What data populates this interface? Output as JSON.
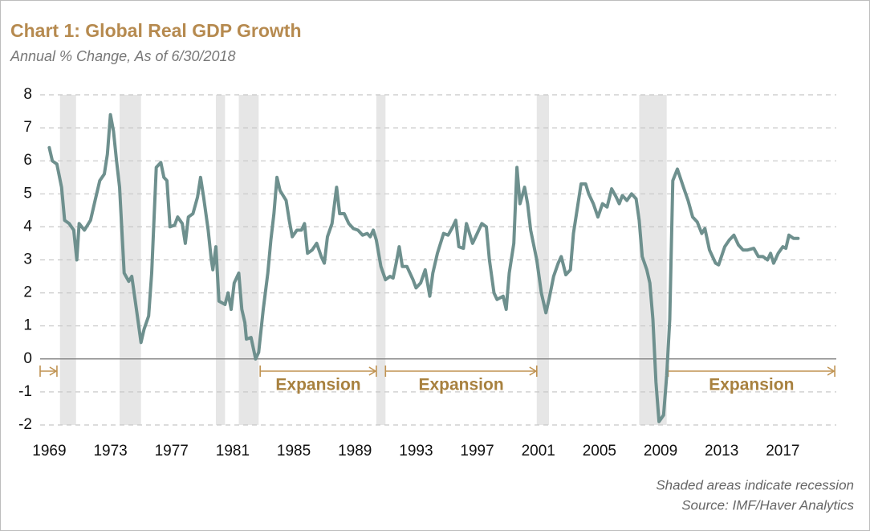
{
  "chart_data": {
    "type": "line",
    "title": "Chart 1: Global Real GDP Growth",
    "subtitle": "Annual % Change, As of 6/30/2018",
    "notes": [
      "Shaded areas indicate recession",
      "Source: IMF/Haver Analytics"
    ],
    "color": "#6e908e",
    "x": [
      1969.0,
      1969.2,
      1969.5,
      1969.8,
      1970.0,
      1970.3,
      1970.6,
      1970.8,
      1970.95,
      1971.3,
      1971.7,
      1972.0,
      1972.3,
      1972.6,
      1972.8,
      1973.0,
      1973.2,
      1973.4,
      1973.6,
      1973.9,
      1974.2,
      1974.4,
      1974.7,
      1975.0,
      1975.2,
      1975.5,
      1975.7,
      1976.0,
      1976.3,
      1976.5,
      1976.7,
      1976.9,
      1977.2,
      1977.4,
      1977.7,
      1977.9,
      1978.1,
      1978.4,
      1978.7,
      1978.9,
      1979.1,
      1979.4,
      1979.6,
      1979.7,
      1979.9,
      1980.1,
      1980.5,
      1980.7,
      1980.9,
      1981.1,
      1981.4,
      1981.6,
      1981.8,
      1981.9,
      1982.2,
      1982.5,
      1982.7,
      1983.0,
      1983.3,
      1983.5,
      1983.7,
      1983.9,
      1984.1,
      1984.5,
      1984.7,
      1984.9,
      1985.2,
      1985.5,
      1985.7,
      1985.9,
      1986.2,
      1986.5,
      1986.8,
      1987.0,
      1987.2,
      1987.5,
      1987.8,
      1988.0,
      1988.3,
      1988.6,
      1988.9,
      1989.2,
      1989.5,
      1989.8,
      1990.0,
      1990.2,
      1990.4,
      1990.7,
      1991.0,
      1991.3,
      1991.5,
      1991.7,
      1991.9,
      1992.1,
      1992.4,
      1992.8,
      1993.0,
      1993.3,
      1993.6,
      1993.9,
      1994.1,
      1994.4,
      1994.8,
      1995.1,
      1995.4,
      1995.6,
      1995.8,
      1996.1,
      1996.3,
      1996.7,
      1997.0,
      1997.3,
      1997.6,
      1997.8,
      1998.1,
      1998.3,
      1998.7,
      1998.9,
      1999.1,
      1999.4,
      1999.6,
      1999.8,
      2000.1,
      2000.3,
      2000.5,
      2000.9,
      2001.2,
      2001.5,
      2001.7,
      2002.0,
      2002.3,
      2002.5,
      2002.8,
      2003.1,
      2003.3,
      2003.6,
      2003.8,
      2004.1,
      2004.3,
      2004.6,
      2004.9,
      2005.2,
      2005.5,
      2005.8,
      2006.1,
      2006.3,
      2006.5,
      2006.8,
      2007.1,
      2007.4,
      2007.6,
      2007.8,
      2008.1,
      2008.3,
      2008.5,
      2008.7,
      2008.9,
      2009.2,
      2009.4,
      2009.6,
      2009.8,
      2010.1,
      2010.5,
      2010.8,
      2011.1,
      2011.4,
      2011.7,
      2011.9,
      2012.2,
      2012.6,
      2012.8,
      2013.2,
      2013.5,
      2013.8,
      2014.1,
      2014.4,
      2014.7,
      2015.1,
      2015.4,
      2015.7,
      2016.0,
      2016.2,
      2016.4,
      2016.7,
      2017.0,
      2017.2,
      2017.4,
      2017.7,
      2018.0
    ],
    "values": [
      6.4,
      6.0,
      5.9,
      5.2,
      4.2,
      4.1,
      3.9,
      3.0,
      4.1,
      3.9,
      4.2,
      4.8,
      5.4,
      5.6,
      6.2,
      7.4,
      6.9,
      6.0,
      5.2,
      2.6,
      2.35,
      2.5,
      1.5,
      0.5,
      0.9,
      1.3,
      2.6,
      5.8,
      5.95,
      5.5,
      5.4,
      4.0,
      4.05,
      4.3,
      4.1,
      3.5,
      4.3,
      4.4,
      4.9,
      5.5,
      4.9,
      3.9,
      3.0,
      2.7,
      3.4,
      1.75,
      1.65,
      2.0,
      1.5,
      2.3,
      2.6,
      1.5,
      1.1,
      0.6,
      0.65,
      0.0,
      0.2,
      1.5,
      2.6,
      3.6,
      4.4,
      5.5,
      5.1,
      4.8,
      4.2,
      3.7,
      3.9,
      3.9,
      4.1,
      3.2,
      3.3,
      3.5,
      3.1,
      2.9,
      3.7,
      4.1,
      5.2,
      4.4,
      4.4,
      4.1,
      3.95,
      3.9,
      3.75,
      3.8,
      3.7,
      3.9,
      3.6,
      2.8,
      2.4,
      2.5,
      2.45,
      2.9,
      3.4,
      2.8,
      2.8,
      2.4,
      2.15,
      2.3,
      2.7,
      1.9,
      2.6,
      3.2,
      3.8,
      3.75,
      4.0,
      4.2,
      3.4,
      3.35,
      4.1,
      3.5,
      3.8,
      4.1,
      4.0,
      3.0,
      2.0,
      1.8,
      1.9,
      1.5,
      2.6,
      3.5,
      5.8,
      4.7,
      5.2,
      4.7,
      3.9,
      3.0,
      2.0,
      1.4,
      1.8,
      2.5,
      2.9,
      3.1,
      2.55,
      2.7,
      3.8,
      4.7,
      5.3,
      5.3,
      5.0,
      4.7,
      4.3,
      4.7,
      4.6,
      5.15,
      4.9,
      4.7,
      4.95,
      4.8,
      5.0,
      4.85,
      4.2,
      3.1,
      2.7,
      2.3,
      1.2,
      -0.7,
      -1.9,
      -1.7,
      -0.5,
      1.2,
      5.4,
      5.75,
      5.2,
      4.8,
      4.3,
      4.15,
      3.8,
      3.95,
      3.3,
      2.9,
      2.85,
      3.4,
      3.6,
      3.75,
      3.45,
      3.3,
      3.3,
      3.35,
      3.1,
      3.1,
      3.0,
      3.2,
      2.9,
      3.2,
      3.4,
      3.35,
      3.75,
      3.65,
      3.65
    ],
    "recessions": [
      [
        1969.7,
        1970.75
      ],
      [
        1973.6,
        1975.0
      ],
      [
        1979.9,
        1980.5
      ],
      [
        1981.4,
        1982.7
      ],
      [
        1990.4,
        1991.0
      ],
      [
        2000.9,
        2001.7
      ],
      [
        2007.6,
        2009.4
      ]
    ],
    "annotations": [
      {
        "from": 1968.4,
        "to": 1969.5
      },
      {
        "text": "Expansion",
        "from": 1982.8,
        "to": 1990.4
      },
      {
        "text": "Expansion",
        "from": 1991.0,
        "to": 2000.9
      },
      {
        "text": "Expansion",
        "from": 2009.5,
        "to": 2020.4
      }
    ],
    "xlim": [
      1968.4,
      2020.5
    ],
    "xticks": [
      1969,
      1973,
      1977,
      1981,
      1985,
      1989,
      1993,
      1997,
      2001,
      2005,
      2009,
      2013,
      2017
    ],
    "ylim": [
      -2,
      8
    ],
    "yticks": [
      -2,
      -1,
      0,
      1,
      2,
      3,
      4,
      5,
      6,
      7,
      8
    ],
    "grid": true
  }
}
